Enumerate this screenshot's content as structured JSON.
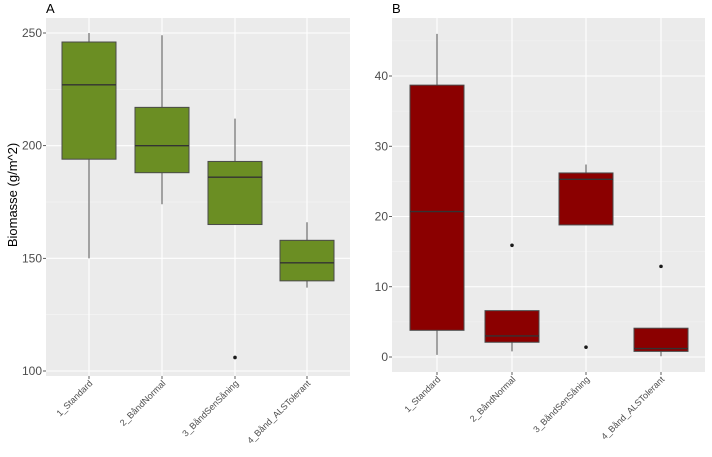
{
  "chart_data": [
    {
      "type": "box",
      "panel": "A",
      "title": "A",
      "xlabel": "",
      "ylabel": "Biomasse (g/m^2)",
      "ylim": [
        100,
        257
      ],
      "yticks": [
        100,
        150,
        200,
        250
      ],
      "ytick_labels": [
        "100",
        "150",
        "200",
        "250"
      ],
      "categories": [
        "1_Standard",
        "2_BåndNormal",
        "3_BåndSenSåning",
        "4_Bånd_ALSTolerant"
      ],
      "fill": "#6b8e23",
      "boxes": [
        {
          "category": "1_Standard",
          "whisker_low": 150,
          "q1": 194,
          "median": 227,
          "q3": 246,
          "whisker_high": 250,
          "outliers": []
        },
        {
          "category": "2_BåndNormal",
          "whisker_low": 174,
          "q1": 188,
          "median": 200,
          "q3": 217,
          "whisker_high": 249,
          "outliers": []
        },
        {
          "category": "3_BåndSenSåning",
          "whisker_low": 165,
          "q1": 165,
          "median": 186,
          "q3": 193,
          "whisker_high": 212,
          "outliers": [
            106
          ]
        },
        {
          "category": "4_Bånd_ALSTolerant",
          "whisker_low": 137,
          "q1": 140,
          "median": 148,
          "q3": 158,
          "whisker_high": 166,
          "outliers": []
        }
      ]
    },
    {
      "type": "box",
      "panel": "B",
      "title": "B",
      "xlabel": "",
      "ylabel": "",
      "ylim": [
        -2.2,
        48
      ],
      "yticks": [
        0,
        10,
        20,
        30,
        40
      ],
      "ytick_labels": [
        "0",
        "10",
        "20",
        "30",
        "40"
      ],
      "categories": [
        "1_Standard",
        "2_BåndNormal",
        "3_BåndSenSåning",
        "4_Bånd_ALSTolerant"
      ],
      "fill": "#8b0000",
      "boxes": [
        {
          "category": "1_Standard",
          "whisker_low": 0.3,
          "q1": 3.8,
          "median": 20.7,
          "q3": 38.7,
          "whisker_high": 46,
          "outliers": []
        },
        {
          "category": "2_BåndNormal",
          "whisker_low": 0.8,
          "q1": 2.1,
          "median": 3.0,
          "q3": 6.6,
          "whisker_high": 6.6,
          "outliers": [
            15.9
          ]
        },
        {
          "category": "3_BåndSenSåning",
          "whisker_low": 18.8,
          "q1": 18.8,
          "median": 25.3,
          "q3": 26.2,
          "whisker_high": 27.4,
          "outliers": [
            1.4
          ]
        },
        {
          "category": "4_Bånd_ALSTolerant",
          "whisker_low": 0.1,
          "q1": 0.8,
          "median": 1.2,
          "q3": 4.1,
          "whisker_high": 4.1,
          "outliers": [
            12.9
          ]
        }
      ]
    }
  ]
}
